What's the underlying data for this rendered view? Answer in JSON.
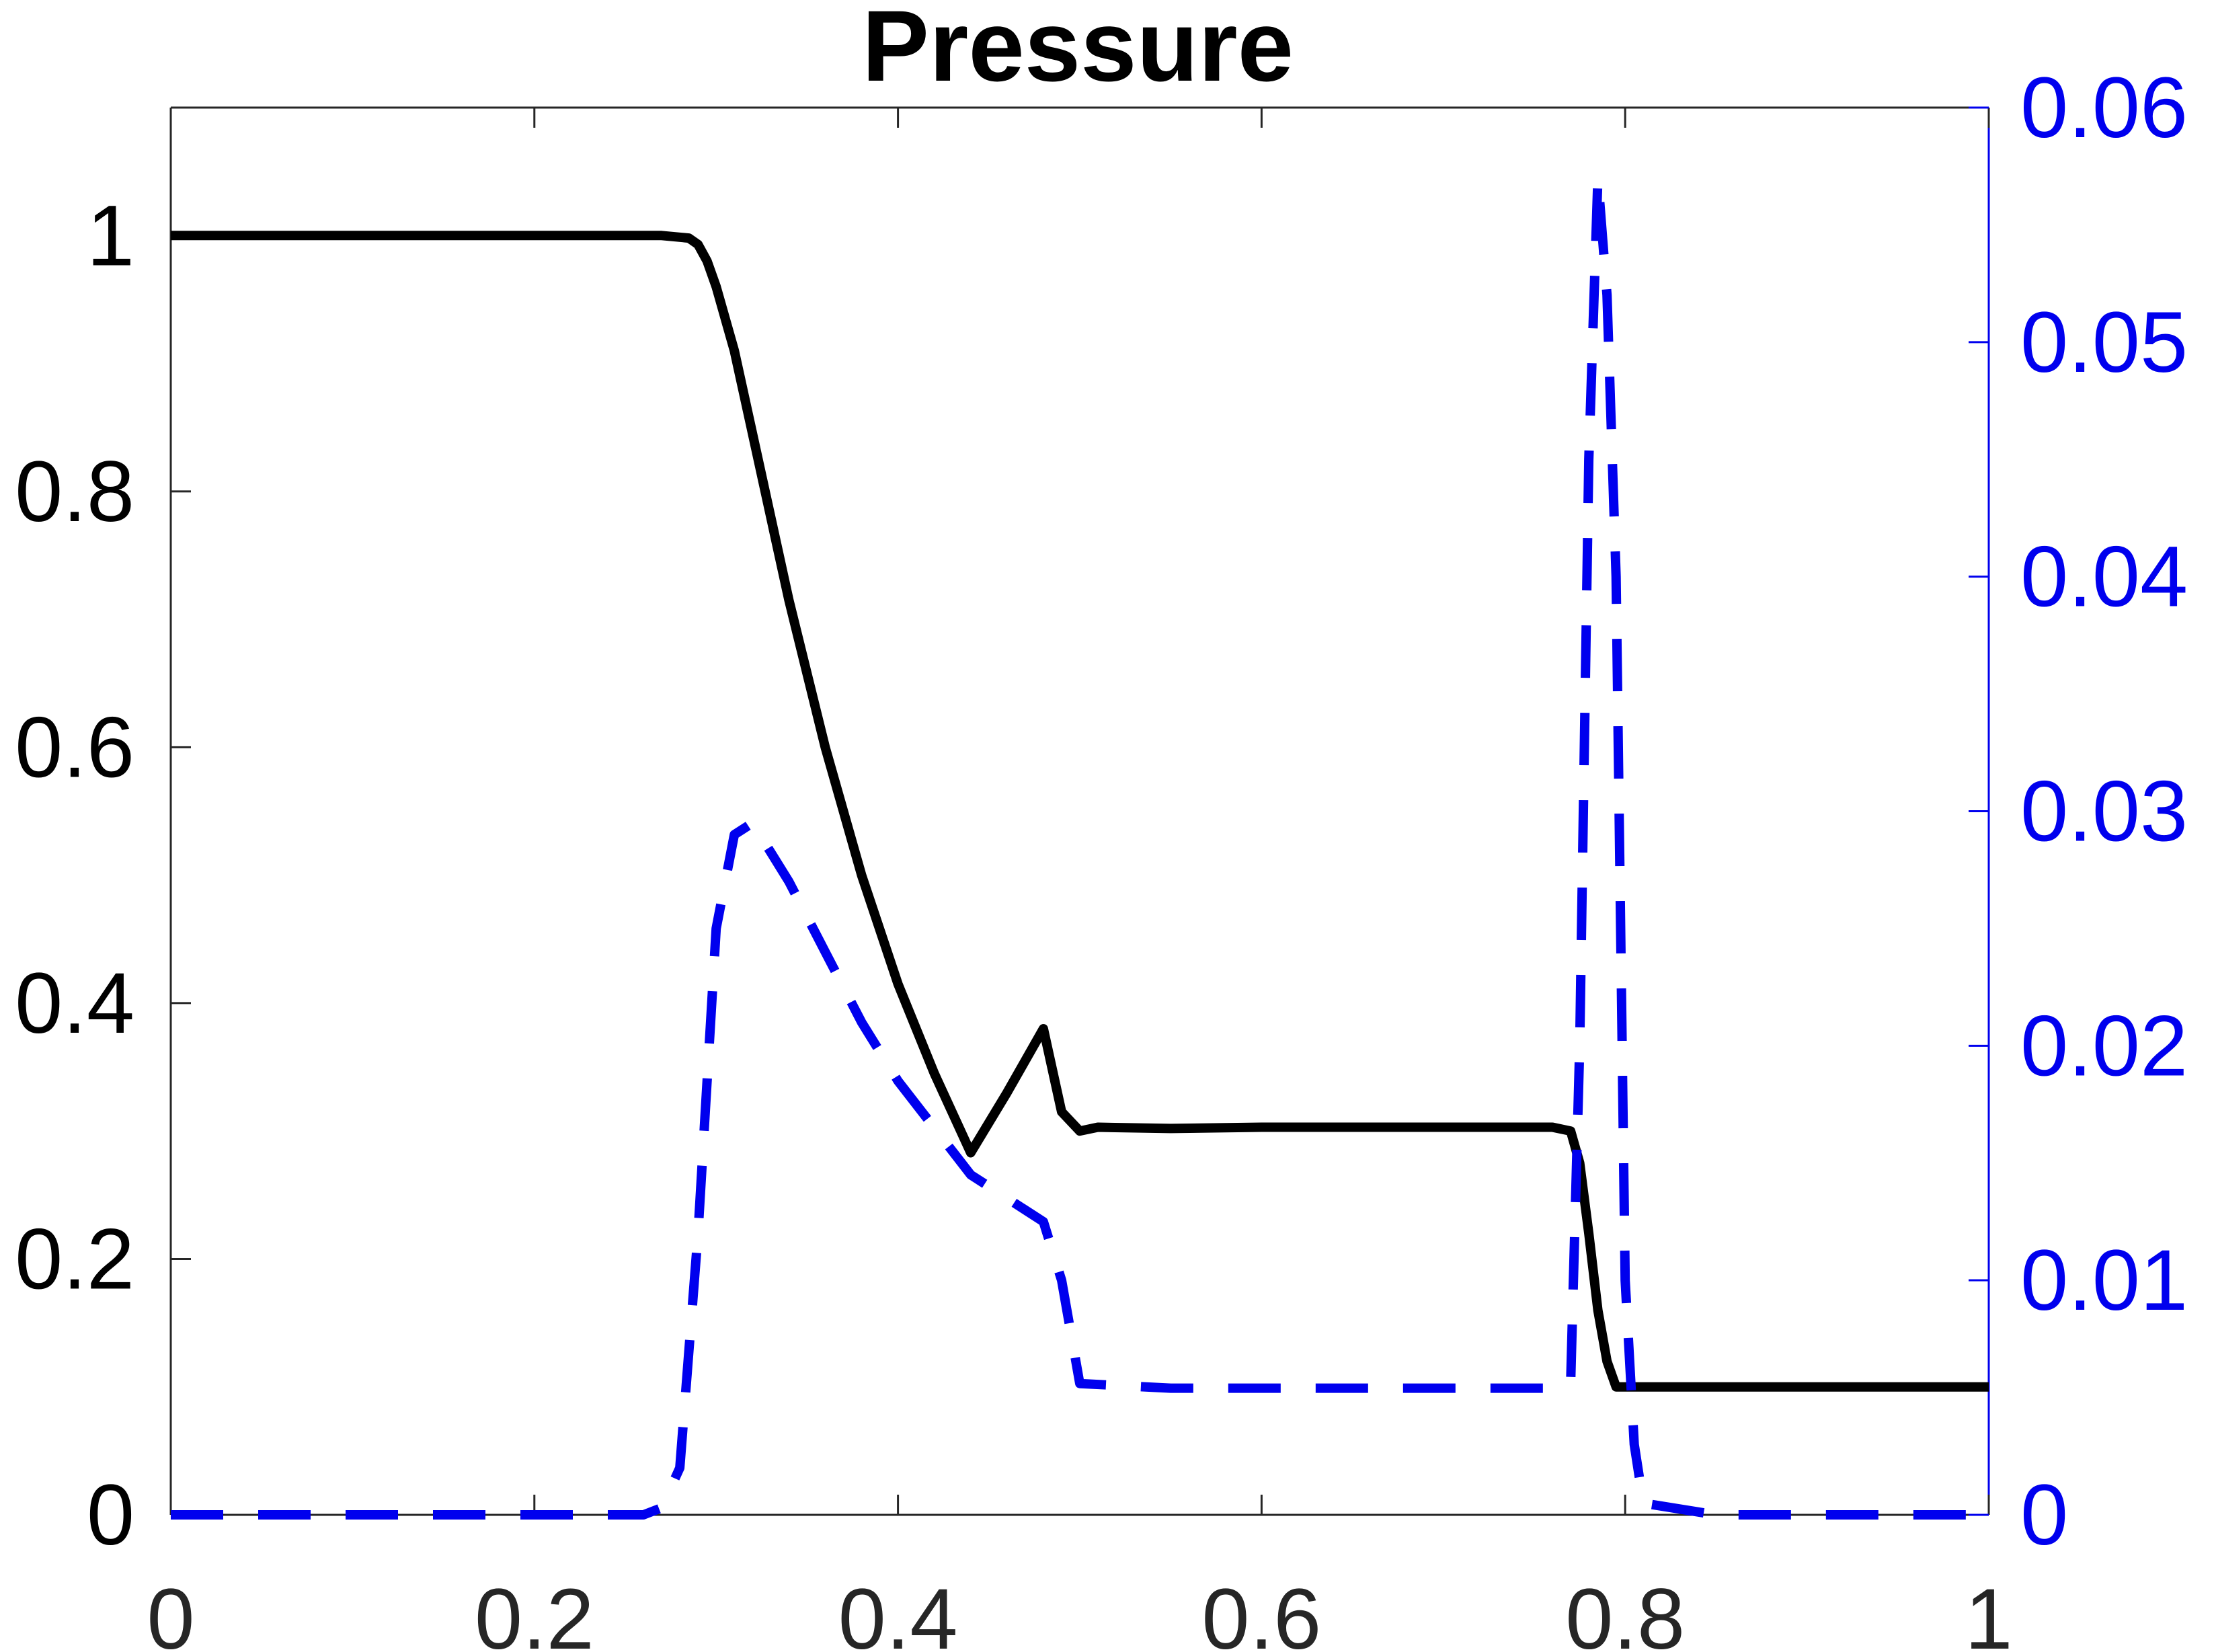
{
  "chart_data": {
    "type": "line",
    "title": "Pressure",
    "xlabel": "",
    "ylabel": "",
    "xlim": [
      0,
      1
    ],
    "ylim_left": [
      0,
      1.1
    ],
    "ylim_right": [
      0,
      0.06
    ],
    "grid": false,
    "legend": "none",
    "x_ticks": [
      "0",
      "0.2",
      "0.4",
      "0.6",
      "0.8",
      "1"
    ],
    "x_tick_values": [
      0,
      0.2,
      0.4,
      0.6,
      0.8,
      1
    ],
    "y_left_ticks": [
      "0",
      "0.2",
      "0.4",
      "0.6",
      "0.8",
      "1"
    ],
    "y_left_tick_values": [
      0,
      0.2,
      0.4,
      0.6,
      0.8,
      1
    ],
    "y_right_ticks": [
      "0",
      "0.01",
      "0.02",
      "0.03",
      "0.04",
      "0.05",
      "0.06"
    ],
    "y_right_tick_values": [
      0,
      0.01,
      0.02,
      0.03,
      0.04,
      0.05,
      0.06
    ],
    "colors": {
      "left_axis": "#000000",
      "right_axis": "#0000ee",
      "x_tick_text": "#262626"
    },
    "series": [
      {
        "axis": "left",
        "color": "#000000",
        "style": "solid",
        "x": [
          0,
          0.1,
          0.2,
          0.27,
          0.285,
          0.29,
          0.295,
          0.3,
          0.31,
          0.32,
          0.34,
          0.36,
          0.38,
          0.4,
          0.42,
          0.44,
          0.46,
          0.48,
          0.49,
          0.5,
          0.51,
          0.55,
          0.6,
          0.65,
          0.7,
          0.76,
          0.77,
          0.775,
          0.78,
          0.785,
          0.79,
          0.795,
          0.8,
          0.81,
          0.85,
          0.9,
          0.95,
          1.0
        ],
        "y": [
          1.0,
          1.0,
          1.0,
          1.0,
          0.998,
          0.993,
          0.98,
          0.96,
          0.91,
          0.845,
          0.715,
          0.6,
          0.5,
          0.415,
          0.345,
          0.283,
          0.33,
          0.38,
          0.315,
          0.3,
          0.303,
          0.302,
          0.303,
          0.303,
          0.303,
          0.303,
          0.3,
          0.275,
          0.22,
          0.16,
          0.12,
          0.1,
          0.1,
          0.1,
          0.1,
          0.1,
          0.1,
          0.1
        ]
      },
      {
        "axis": "right",
        "color": "#0000ee",
        "style": "dashed",
        "x": [
          0,
          0.1,
          0.2,
          0.26,
          0.27,
          0.28,
          0.29,
          0.3,
          0.31,
          0.32,
          0.34,
          0.36,
          0.38,
          0.4,
          0.42,
          0.44,
          0.46,
          0.48,
          0.49,
          0.5,
          0.55,
          0.6,
          0.66,
          0.7,
          0.76,
          0.77,
          0.775,
          0.78,
          0.785,
          0.79,
          0.795,
          0.8,
          0.805,
          0.81,
          0.85,
          0.9,
          0.95,
          1.0
        ],
        "y": [
          0,
          0,
          0,
          0,
          0.0003,
          0.002,
          0.012,
          0.025,
          0.029,
          0.0295,
          0.027,
          0.024,
          0.021,
          0.0185,
          0.0165,
          0.0145,
          0.0135,
          0.0125,
          0.01,
          0.0056,
          0.0054,
          0.0054,
          0.0054,
          0.0054,
          0.0054,
          0.0056,
          0.02,
          0.045,
          0.057,
          0.052,
          0.04,
          0.01,
          0.003,
          0.0005,
          0,
          0,
          0,
          0
        ]
      }
    ]
  }
}
